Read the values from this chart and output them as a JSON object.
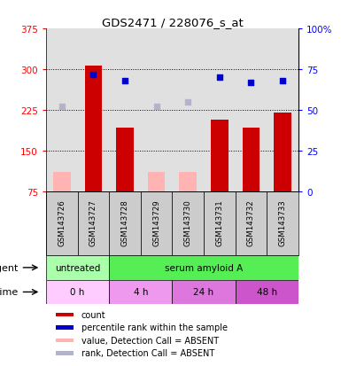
{
  "title": "GDS2471 / 228076_s_at",
  "samples": [
    "GSM143726",
    "GSM143727",
    "GSM143728",
    "GSM143729",
    "GSM143730",
    "GSM143731",
    "GSM143732",
    "GSM143733"
  ],
  "bar_values": [
    null,
    307,
    193,
    null,
    null,
    207,
    193,
    220
  ],
  "bar_absent_values": [
    110,
    null,
    null,
    110,
    110,
    null,
    null,
    null
  ],
  "percentile_present": [
    null,
    72,
    68,
    null,
    null,
    70,
    67,
    68
  ],
  "percentile_absent": [
    52,
    null,
    null,
    52,
    55,
    null,
    null,
    null
  ],
  "bar_color": "#cc0000",
  "bar_absent_color": "#ffb3b3",
  "point_color": "#0000cc",
  "point_absent_color": "#b3b3cc",
  "ylim_left": [
    75,
    375
  ],
  "ylim_right": [
    0,
    100
  ],
  "yticks_left": [
    75,
    150,
    225,
    300,
    375
  ],
  "yticks_right": [
    0,
    25,
    50,
    75,
    100
  ],
  "ytick_labels_left": [
    "75",
    "150",
    "225",
    "300",
    "375"
  ],
  "ytick_labels_right": [
    "0",
    "25",
    "50",
    "75",
    "100%"
  ],
  "grid_values": [
    150,
    225,
    300
  ],
  "agent_row": [
    {
      "label": "untreated",
      "start": 0,
      "end": 2,
      "color": "#aaffaa"
    },
    {
      "label": "serum amyloid A",
      "start": 2,
      "end": 8,
      "color": "#55ee55"
    }
  ],
  "time_row": [
    {
      "label": "0 h",
      "start": 0,
      "end": 2,
      "color": "#ffccff"
    },
    {
      "label": "4 h",
      "start": 2,
      "end": 4,
      "color": "#ee99ee"
    },
    {
      "label": "24 h",
      "start": 4,
      "end": 6,
      "color": "#dd77dd"
    },
    {
      "label": "48 h",
      "start": 6,
      "end": 8,
      "color": "#cc55cc"
    }
  ],
  "legend_items": [
    {
      "color": "#cc0000",
      "label": "count"
    },
    {
      "color": "#0000cc",
      "label": "percentile rank within the sample"
    },
    {
      "color": "#ffb3b3",
      "label": "value, Detection Call = ABSENT"
    },
    {
      "color": "#b3b3cc",
      "label": "rank, Detection Call = ABSENT"
    }
  ],
  "bar_width": 0.55,
  "col_bg_color": "#cccccc"
}
